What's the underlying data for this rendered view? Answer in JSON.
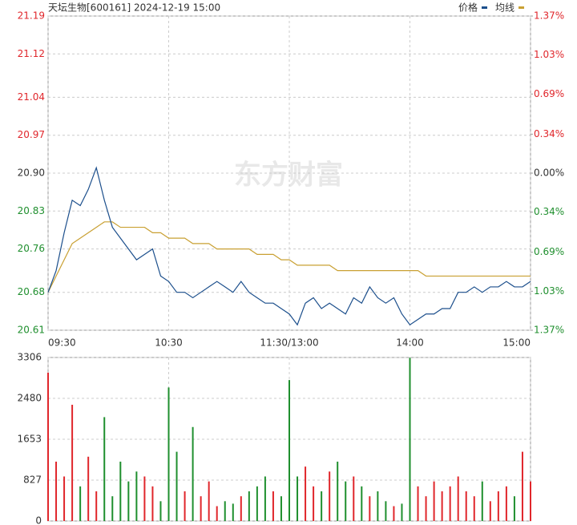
{
  "chart_data": [
    {
      "type": "line",
      "title": "天坛生物[600161] 2024-12-19 15:00",
      "watermark": "东方财富",
      "x": [
        0,
        4,
        8,
        12,
        16,
        20,
        24,
        28,
        32,
        36,
        40,
        44,
        48,
        52,
        56,
        60,
        64,
        68,
        72,
        76,
        80,
        84,
        88,
        92,
        96,
        100,
        104,
        108,
        112,
        116,
        120,
        124,
        128,
        132,
        136,
        140,
        144,
        148,
        152,
        156,
        160,
        164,
        168,
        172,
        176,
        180,
        184,
        188,
        192,
        196,
        200,
        204,
        208,
        212,
        216,
        220,
        224,
        228,
        232,
        236,
        240
      ],
      "xlim": [
        0,
        240
      ],
      "xticks": [
        {
          "value": 0,
          "label": "09:30"
        },
        {
          "value": 60,
          "label": "10:30"
        },
        {
          "value": 120,
          "label": "11:30/13:00"
        },
        {
          "value": 180,
          "label": "14:00"
        },
        {
          "value": 240,
          "label": "15:00"
        }
      ],
      "ylim": [
        20.61,
        21.19
      ],
      "yticks": [
        {
          "value": 20.61,
          "label": "20.61"
        },
        {
          "value": 20.68,
          "label": "20.68"
        },
        {
          "value": 20.76,
          "label": "20.76"
        },
        {
          "value": 20.83,
          "label": "20.83"
        },
        {
          "value": 20.9,
          "label": "20.90"
        },
        {
          "value": 20.97,
          "label": "20.97"
        },
        {
          "value": 21.04,
          "label": "21.04"
        },
        {
          "value": 21.12,
          "label": "21.12"
        },
        {
          "value": 21.19,
          "label": "21.19"
        }
      ],
      "y2lim": [
        -1.37,
        1.37
      ],
      "y2ticks": [
        {
          "value": -1.37,
          "label": "1.37%"
        },
        {
          "value": -1.03,
          "label": "1.03%"
        },
        {
          "value": -0.69,
          "label": "0.69%"
        },
        {
          "value": -0.34,
          "label": "0.34%"
        },
        {
          "value": 0,
          "label": "0.00%"
        },
        {
          "value": 0.34,
          "label": "0.34%"
        },
        {
          "value": 0.69,
          "label": "0.69%"
        },
        {
          "value": 1.03,
          "label": "1.03%"
        },
        {
          "value": 1.37,
          "label": "1.37%"
        }
      ],
      "grid": true,
      "legend": "top-right",
      "up_color": "#e0262b",
      "down_color": "#1f8f2e",
      "flat_color": "#333333",
      "series": [
        {
          "name": "价格",
          "color": "#1c4f8c",
          "values": [
            20.68,
            20.72,
            20.79,
            20.85,
            20.84,
            20.87,
            20.91,
            20.85,
            20.8,
            20.78,
            20.76,
            20.74,
            20.75,
            20.76,
            20.71,
            20.7,
            20.68,
            20.68,
            20.67,
            20.68,
            20.69,
            20.7,
            20.69,
            20.68,
            20.7,
            20.68,
            20.67,
            20.66,
            20.66,
            20.65,
            20.64,
            20.62,
            20.66,
            20.67,
            20.65,
            20.66,
            20.65,
            20.64,
            20.67,
            20.66,
            20.69,
            20.67,
            20.66,
            20.67,
            20.64,
            20.62,
            20.63,
            20.64,
            20.64,
            20.65,
            20.65,
            20.68,
            20.68,
            20.69,
            20.68,
            20.69,
            20.69,
            20.7,
            20.69,
            20.69,
            20.7
          ]
        },
        {
          "name": "均线",
          "color": "#c9a032",
          "values": [
            20.68,
            20.71,
            20.74,
            20.77,
            20.78,
            20.79,
            20.8,
            20.81,
            20.81,
            20.8,
            20.8,
            20.8,
            20.8,
            20.79,
            20.79,
            20.78,
            20.78,
            20.78,
            20.77,
            20.77,
            20.77,
            20.76,
            20.76,
            20.76,
            20.76,
            20.76,
            20.75,
            20.75,
            20.75,
            20.74,
            20.74,
            20.73,
            20.73,
            20.73,
            20.73,
            20.73,
            20.72,
            20.72,
            20.72,
            20.72,
            20.72,
            20.72,
            20.72,
            20.72,
            20.72,
            20.72,
            20.72,
            20.71,
            20.71,
            20.71,
            20.71,
            20.71,
            20.71,
            20.71,
            20.71,
            20.71,
            20.71,
            20.71,
            20.71,
            20.71,
            20.71
          ]
        }
      ]
    },
    {
      "type": "bar",
      "x": [
        0,
        4,
        8,
        12,
        16,
        20,
        24,
        28,
        32,
        36,
        40,
        44,
        48,
        52,
        56,
        60,
        64,
        68,
        72,
        76,
        80,
        84,
        88,
        92,
        96,
        100,
        104,
        108,
        112,
        116,
        120,
        124,
        128,
        132,
        136,
        140,
        144,
        148,
        152,
        156,
        160,
        164,
        168,
        172,
        176,
        180,
        184,
        188,
        192,
        196,
        200,
        204,
        208,
        212,
        216,
        220,
        224,
        228,
        232,
        236,
        240
      ],
      "xlim": [
        0,
        240
      ],
      "ylim": [
        0,
        3306
      ],
      "yticks": [
        0,
        827,
        1653,
        2480,
        3306
      ],
      "grid": true,
      "up_color": "#e0262b",
      "down_color": "#1f8f2e",
      "values": [
        3000,
        1200,
        900,
        2350,
        700,
        1300,
        600,
        2100,
        500,
        1200,
        800,
        1000,
        900,
        700,
        400,
        2700,
        1400,
        600,
        1900,
        500,
        800,
        300,
        400,
        350,
        500,
        600,
        700,
        900,
        600,
        500,
        2850,
        900,
        1100,
        700,
        600,
        1000,
        1200,
        800,
        900,
        700,
        500,
        600,
        400,
        300,
        350,
        3300,
        700,
        500,
        800,
        600,
        700,
        900,
        600,
        500,
        800,
        400,
        600,
        700,
        500,
        1400,
        800
      ]
    }
  ]
}
